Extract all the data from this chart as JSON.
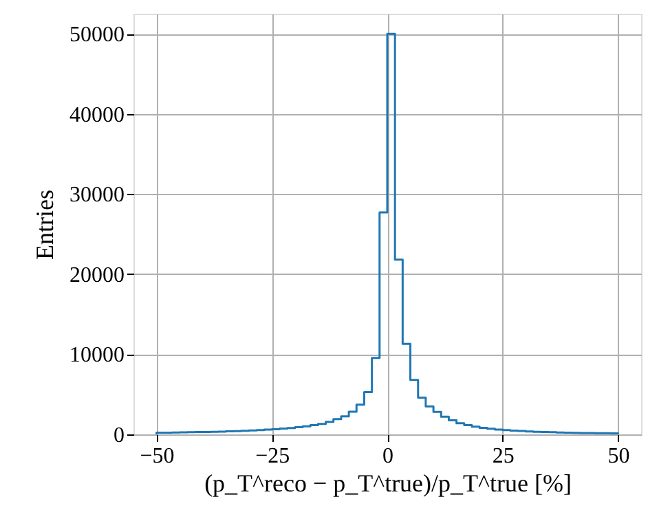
{
  "chart_data": {
    "type": "histogram",
    "xlabel": "(p_T^reco − p_T^true)/p_T^true [%]",
    "ylabel": "Entries",
    "bins": [
      -50,
      -48.33,
      -46.67,
      -45,
      -43.33,
      -41.67,
      -40,
      -38.33,
      -36.67,
      -35,
      -33.33,
      -31.67,
      -30,
      -28.33,
      -26.67,
      -25,
      -23.33,
      -21.67,
      -20,
      -18.33,
      -16.67,
      -15,
      -13.33,
      -11.67,
      -10,
      -8.33,
      -6.67,
      -5,
      -3.33,
      -1.67,
      0,
      1.67,
      3.33,
      5,
      6.67,
      8.33,
      10,
      11.67,
      13.33,
      15,
      16.67,
      18.33,
      20,
      21.67,
      23.33,
      25,
      26.67,
      28.33,
      30,
      31.67,
      33.33,
      35,
      36.67,
      38.33,
      40,
      41.67,
      43.33,
      45,
      46.67,
      48.33,
      50
    ],
    "values": [
      210,
      225,
      240,
      255,
      270,
      290,
      310,
      330,
      350,
      380,
      410,
      450,
      490,
      540,
      590,
      650,
      720,
      800,
      900,
      1000,
      1150,
      1300,
      1560,
      1910,
      2260,
      2840,
      3700,
      5270,
      9550,
      27700,
      50000,
      21800,
      11300,
      6800,
      4600,
      3500,
      2800,
      2200,
      1750,
      1400,
      1150,
      960,
      820,
      700,
      610,
      530,
      470,
      420,
      370,
      330,
      300,
      270,
      240,
      220,
      200,
      180,
      165,
      150,
      140,
      130
    ],
    "color": "#1f77b4",
    "xlim": [
      -55,
      55
    ],
    "xticks": [
      -50,
      -25,
      0,
      25,
      50
    ],
    "ylim": [
      0,
      52500
    ],
    "yticks": [
      0,
      10000,
      20000,
      30000,
      40000,
      50000
    ],
    "grid": true
  }
}
